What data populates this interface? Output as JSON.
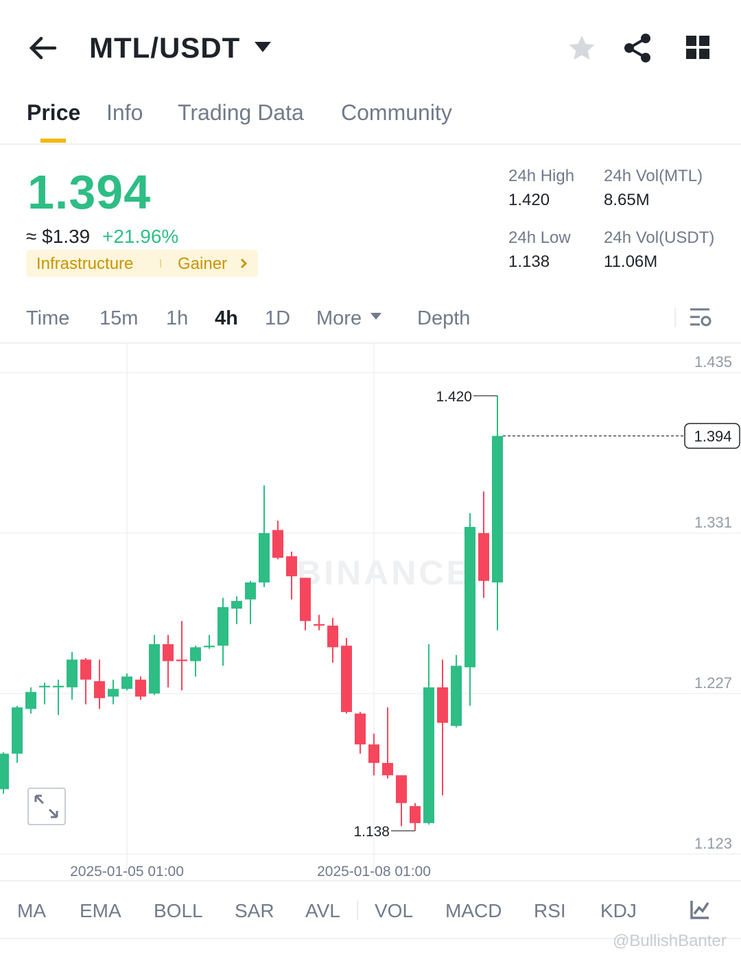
{
  "header": {
    "pair": "MTL/USDT"
  },
  "tabs": [
    "Price",
    "Info",
    "Trading Data",
    "Community"
  ],
  "price": {
    "last": "1.394",
    "usd": "≈ $1.39",
    "change": "+21.96%"
  },
  "tags": [
    "Infrastructure",
    "Gainer"
  ],
  "stats": [
    {
      "label": "24h High",
      "value": "1.420"
    },
    {
      "label": "24h Vol(MTL)",
      "value": "8.65M"
    },
    {
      "label": "24h Low",
      "value": "1.138"
    },
    {
      "label": "24h Vol(USDT)",
      "value": "11.06M"
    }
  ],
  "intervals": [
    "Time",
    "15m",
    "1h",
    "4h",
    "1D",
    "More",
    "Depth"
  ],
  "indicators": [
    "MA",
    "EMA",
    "BOLL",
    "SAR",
    "AVL",
    "VOL",
    "MACD",
    "RSI",
    "KDJ"
  ],
  "watermark": "@BullishBanter",
  "chart_data": {
    "type": "candlestick",
    "watermark": "BINANCE",
    "categories": [
      null,
      null,
      null,
      null,
      null,
      null,
      null,
      null,
      null,
      "2025-01-05 01:00",
      null,
      null,
      null,
      null,
      null,
      null,
      null,
      null,
      null,
      null,
      null,
      null,
      null,
      null,
      null,
      null,
      null,
      "2025-01-08 01:00",
      null,
      null,
      null,
      null,
      null,
      null,
      null,
      null,
      null
    ],
    "open": [
      1.165,
      1.188,
      1.217,
      1.231,
      1.231,
      1.231,
      1.249,
      1.235,
      1.225,
      1.23,
      1.236,
      1.227,
      1.259,
      1.249,
      1.248,
      1.257,
      1.258,
      1.282,
      1.288,
      1.299,
      1.333,
      1.316,
      1.302,
      1.272,
      1.271,
      1.258,
      1.214,
      1.194,
      1.182,
      1.174,
      1.154,
      1.143,
      1.231,
      1.206,
      1.244,
      1.331,
      1.299
    ],
    "high": [
      1.189,
      1.219,
      1.231,
      1.234,
      1.236,
      1.254,
      1.25,
      1.249,
      1.236,
      1.24,
      1.238,
      1.265,
      1.265,
      1.274,
      1.258,
      1.265,
      1.289,
      1.29,
      1.3,
      1.362,
      1.339,
      1.319,
      1.302,
      1.278,
      1.276,
      1.263,
      1.215,
      1.201,
      1.218,
      1.174,
      1.156,
      1.259,
      1.249,
      1.252,
      1.344,
      1.358,
      1.42
    ],
    "low": [
      1.162,
      1.182,
      1.214,
      1.22,
      1.213,
      1.223,
      1.22,
      1.217,
      1.22,
      1.229,
      1.223,
      1.226,
      1.231,
      1.229,
      1.238,
      1.256,
      1.245,
      1.272,
      1.272,
      1.296,
      1.314,
      1.288,
      1.268,
      1.268,
      1.247,
      1.214,
      1.188,
      1.174,
      1.172,
      1.141,
      1.138,
      1.142,
      1.161,
      1.205,
      1.219,
      1.289,
      1.268
    ],
    "close": [
      1.188,
      1.218,
      1.228,
      1.232,
      1.232,
      1.249,
      1.236,
      1.224,
      1.23,
      1.238,
      1.225,
      1.259,
      1.248,
      1.248,
      1.257,
      1.258,
      1.283,
      1.287,
      1.299,
      1.331,
      1.315,
      1.303,
      1.274,
      1.271,
      1.257,
      1.215,
      1.194,
      1.182,
      1.174,
      1.156,
      1.143,
      1.231,
      1.208,
      1.245,
      1.335,
      1.3,
      1.394
    ],
    "up_color": "#2ebd85",
    "down_color": "#f6465d",
    "ylim": [
      1.106,
      1.452
    ],
    "yticks": [
      1.435,
      1.331,
      1.227,
      1.123
    ],
    "grid": true,
    "high_label": {
      "value": 1.42,
      "label": "1.420"
    },
    "low_label": 1.138,
    "last_price": 1.394
  }
}
